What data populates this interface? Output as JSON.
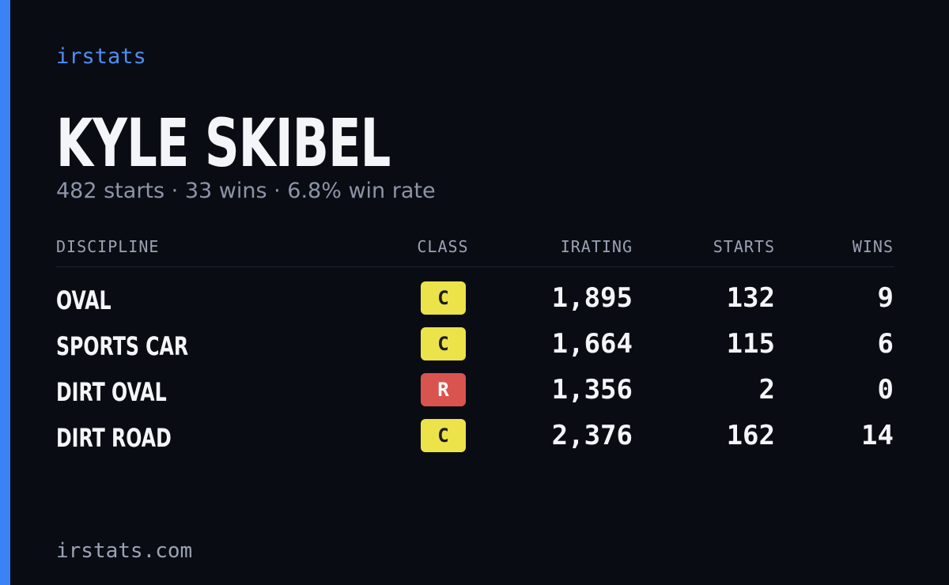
{
  "header": {
    "brand": "irstats",
    "name": "KYLE SKIBEL",
    "summary": "482 starts · 33 wins · 6.8% win rate"
  },
  "table": {
    "columns": [
      "DISCIPLINE",
      "CLASS",
      "IRATING",
      "STARTS",
      "WINS"
    ],
    "rows": [
      {
        "discipline": "OVAL",
        "class": "C",
        "class_color": "#ece24a",
        "class_text_color": "#1b1b1b",
        "irating": "1,895",
        "starts": "132",
        "wins": "9"
      },
      {
        "discipline": "SPORTS CAR",
        "class": "C",
        "class_color": "#ece24a",
        "class_text_color": "#1b1b1b",
        "irating": "1,664",
        "starts": "115",
        "wins": "6"
      },
      {
        "discipline": "DIRT OVAL",
        "class": "R",
        "class_color": "#d9534f",
        "class_text_color": "#ffffff",
        "irating": "1,356",
        "starts": "2",
        "wins": "0"
      },
      {
        "discipline": "DIRT ROAD",
        "class": "C",
        "class_color": "#ece24a",
        "class_text_color": "#1b1b1b",
        "irating": "2,376",
        "starts": "162",
        "wins": "14"
      }
    ]
  },
  "footer": {
    "url": "irstats.com"
  }
}
